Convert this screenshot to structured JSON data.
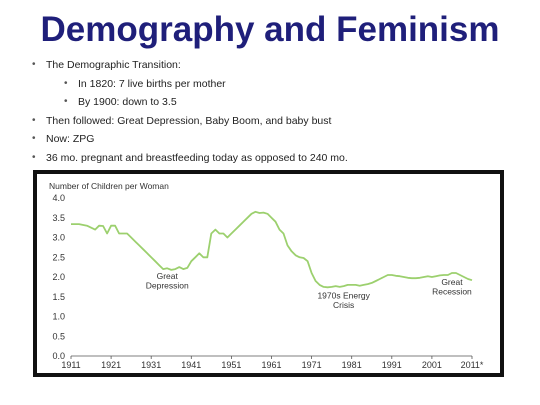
{
  "slide": {
    "title": "Demography and Feminism",
    "bullets": [
      {
        "level": 1,
        "text": "The Demographic Transition:"
      },
      {
        "level": 2,
        "text": "In 1820: 7 live births per mother"
      },
      {
        "level": 2,
        "text": "By 1900: down to 3.5"
      },
      {
        "level": 1,
        "text": "Then followed: Great Depression, Baby Boom, and baby bust"
      },
      {
        "level": 1,
        "text": "Now: ZPG"
      },
      {
        "level": 1,
        "text": "36 mo. pregnant and breastfeeding today as opposed to 240 mo."
      }
    ]
  },
  "chart_data": {
    "type": "line",
    "title": "",
    "xlabel": "",
    "ylabel": "Number of Children per Woman",
    "xlim": [
      1911,
      2011
    ],
    "ylim": [
      0.0,
      4.0
    ],
    "x_ticks": [
      "1911",
      "1921",
      "1931",
      "1941",
      "1951",
      "1961",
      "1971",
      "1981",
      "1991",
      "2001",
      "2011*"
    ],
    "y_ticks": [
      "0.0",
      "0.5",
      "1.0",
      "1.5",
      "2.0",
      "2.5",
      "3.0",
      "3.5",
      "4.0"
    ],
    "grid": false,
    "color": "#9cd06e",
    "series": [
      {
        "name": "",
        "x": [
          1911,
          1913,
          1915,
          1917,
          1918,
          1919,
          1920,
          1921,
          1922,
          1923,
          1924,
          1925,
          1926,
          1927,
          1928,
          1929,
          1930,
          1931,
          1932,
          1933,
          1934,
          1935,
          1936,
          1937,
          1938,
          1939,
          1940,
          1941,
          1942,
          1943,
          1944,
          1945,
          1946,
          1947,
          1948,
          1949,
          1950,
          1951,
          1952,
          1953,
          1954,
          1955,
          1956,
          1957,
          1958,
          1959,
          1960,
          1961,
          1962,
          1963,
          1964,
          1965,
          1966,
          1967,
          1968,
          1969,
          1970,
          1971,
          1972,
          1973,
          1974,
          1975,
          1976,
          1977,
          1978,
          1979,
          1980,
          1981,
          1982,
          1983,
          1984,
          1985,
          1986,
          1987,
          1988,
          1989,
          1990,
          1991,
          1992,
          1993,
          1994,
          1995,
          1996,
          1997,
          1998,
          1999,
          2000,
          2001,
          2002,
          2003,
          2004,
          2005,
          2006,
          2007,
          2008,
          2009,
          2010,
          2011
        ],
        "y": [
          3.34,
          3.34,
          3.3,
          3.2,
          3.3,
          3.29,
          3.1,
          3.3,
          3.3,
          3.1,
          3.1,
          3.1,
          3.0,
          2.9,
          2.8,
          2.7,
          2.6,
          2.5,
          2.4,
          2.3,
          2.2,
          2.22,
          2.18,
          2.2,
          2.25,
          2.2,
          2.23,
          2.4,
          2.5,
          2.6,
          2.5,
          2.5,
          3.1,
          3.2,
          3.1,
          3.1,
          3.0,
          3.1,
          3.2,
          3.3,
          3.4,
          3.5,
          3.6,
          3.65,
          3.62,
          3.63,
          3.6,
          3.5,
          3.4,
          3.2,
          3.1,
          2.8,
          2.65,
          2.55,
          2.5,
          2.48,
          2.4,
          2.1,
          1.9,
          1.8,
          1.75,
          1.74,
          1.75,
          1.77,
          1.75,
          1.77,
          1.8,
          1.8,
          1.8,
          1.78,
          1.8,
          1.82,
          1.85,
          1.9,
          1.95,
          2.0,
          2.05,
          2.05,
          2.03,
          2.02,
          2.0,
          1.98,
          1.97,
          1.97,
          1.98,
          2.0,
          2.02,
          2.0,
          2.02,
          2.04,
          2.05,
          2.05,
          2.1,
          2.1,
          2.05,
          2.0,
          1.95,
          1.92
        ]
      }
    ],
    "annotations": [
      {
        "lines": [
          "Great",
          "Depression"
        ],
        "x": 1935,
        "y": 1.95
      },
      {
        "lines": [
          "1970s Energy",
          "Crisis"
        ],
        "x": 1979,
        "y": 1.45
      },
      {
        "lines": [
          "Great",
          "Recession"
        ],
        "x": 2006,
        "y": 1.8
      }
    ]
  }
}
